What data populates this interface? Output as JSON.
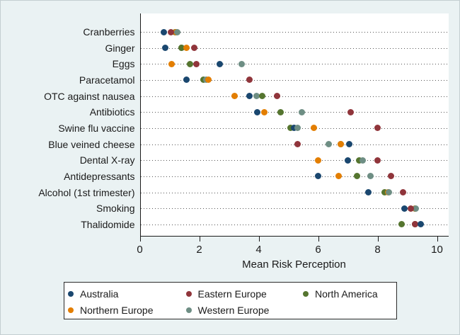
{
  "chart_data": {
    "type": "scatter",
    "variant": "dot-plot",
    "title": "",
    "xlabel": "Mean Risk Perception",
    "ylabel": "",
    "xlim": [
      0,
      10.4
    ],
    "xticks": [
      0,
      2,
      4,
      6,
      8,
      10
    ],
    "grid": "horizontal dotted leader line per category",
    "legend_position": "bottom-box",
    "plot_bg": "#ffffff",
    "figure_bg": "#eaf2f3",
    "series": [
      {
        "key": "australia",
        "name": "Australia",
        "color": "#1a476f"
      },
      {
        "key": "eastern_europe",
        "name": "Eastern Europe",
        "color": "#90353b"
      },
      {
        "key": "north_america",
        "name": "North America",
        "color": "#55752f"
      },
      {
        "key": "northern_europe",
        "name": "Northern Europe",
        "color": "#e37e00"
      },
      {
        "key": "western_europe",
        "name": "Western Europe",
        "color": "#6e8e84"
      }
    ],
    "categories": [
      "Cranberries",
      "Ginger",
      "Eggs",
      "Paracetamol",
      "OTC against nausea",
      "Antibiotics",
      "Swine flu vaccine",
      "Blue veined cheese",
      "Dental X-ray",
      "Antidepressants",
      "Alcohol (1st trimester)",
      "Smoking",
      "Thalidomide"
    ],
    "values": {
      "australia": [
        0.8,
        0.85,
        2.7,
        1.58,
        3.7,
        3.95,
        5.2,
        7.05,
        7.0,
        6.0,
        7.7,
        8.9,
        9.45
      ],
      "eastern_europe": [
        1.05,
        1.83,
        1.9,
        3.7,
        4.63,
        7.1,
        8.0,
        5.3,
        8.0,
        8.45,
        8.85,
        9.13,
        9.25
      ],
      "north_america": [
        1.2,
        1.4,
        1.68,
        2.15,
        4.13,
        4.73,
        5.08,
        6.75,
        7.37,
        7.3,
        8.23,
        9.25,
        8.8
      ],
      "northern_europe": [
        1.22,
        1.57,
        1.08,
        2.32,
        3.18,
        4.2,
        5.85,
        6.75,
        6.0,
        6.7,
        8.35,
        9.25,
        9.25
      ],
      "western_europe": [
        1.25,
        1.4,
        3.44,
        2.23,
        3.94,
        5.45,
        5.3,
        6.35,
        7.49,
        7.77,
        8.38,
        9.28,
        9.25
      ]
    },
    "draw_order": [
      [
        "north_america",
        "northern_europe",
        "australia",
        "eastern_europe",
        "western_europe"
      ],
      [
        "western_europe",
        "australia",
        "north_america",
        "northern_europe",
        "eastern_europe"
      ],
      [
        "australia",
        "eastern_europe",
        "north_america",
        "northern_europe",
        "western_europe"
      ],
      [
        "australia",
        "north_america",
        "western_europe",
        "northern_europe",
        "eastern_europe"
      ],
      [
        "northern_europe",
        "australia",
        "western_europe",
        "north_america",
        "eastern_europe"
      ],
      [
        "australia",
        "northern_europe",
        "north_america",
        "western_europe",
        "eastern_europe"
      ],
      [
        "north_america",
        "australia",
        "western_europe",
        "northern_europe",
        "eastern_europe"
      ],
      [
        "north_america",
        "eastern_europe",
        "western_europe",
        "northern_europe",
        "australia"
      ],
      [
        "northern_europe",
        "australia",
        "north_america",
        "western_europe",
        "eastern_europe"
      ],
      [
        "australia",
        "northern_europe",
        "north_america",
        "western_europe",
        "eastern_europe"
      ],
      [
        "australia",
        "north_america",
        "northern_europe",
        "western_europe",
        "eastern_europe"
      ],
      [
        "north_america",
        "northern_europe",
        "western_europe",
        "australia",
        "eastern_europe"
      ],
      [
        "northern_europe",
        "western_europe",
        "north_america",
        "eastern_europe",
        "australia"
      ]
    ]
  }
}
